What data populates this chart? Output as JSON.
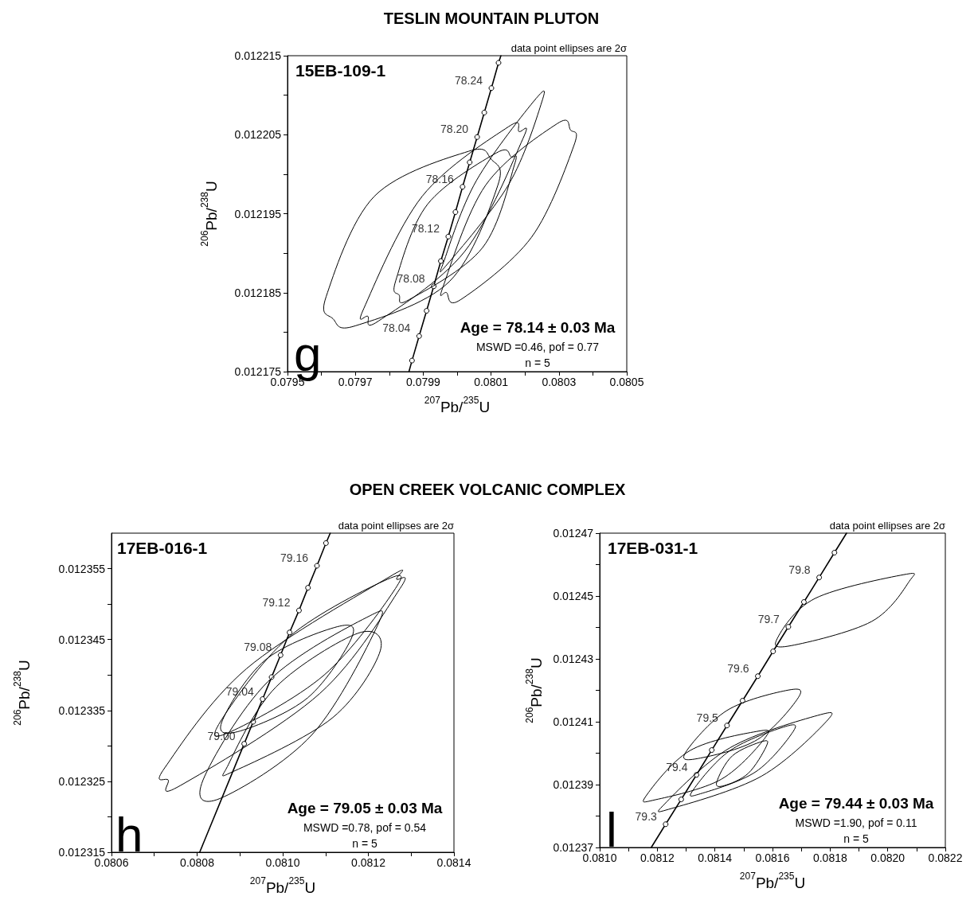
{
  "chart_data": [
    {
      "type": "line",
      "title": "TESLIN MOUNTAIN PLUTON",
      "xlabel": "$^{207}$Pb/$^{235}$U",
      "ylabel": "$^{206}$Pb/$^{238}$U",
      "xlim": [
        0.0795,
        0.0805
      ],
      "xticks": [
        0.0795,
        {
          "value": 0.0796,
          "label": null
        },
        0.0797,
        {
          "value": 0.0798,
          "label": null
        },
        0.0799,
        {
          "value": 0.08,
          "label": null
        },
        0.0801,
        {
          "value": 0.0802,
          "label": null
        },
        0.0803,
        {
          "value": 0.0804,
          "label": null
        },
        0.0805
      ],
      "ylim": [
        0.012175,
        0.012215
      ],
      "yticks": [
        0.012175,
        {
          "value": 0.01218,
          "label": null
        },
        0.012185,
        {
          "value": 0.01219,
          "label": null
        },
        0.012195,
        {
          "value": 0.0122,
          "label": null
        },
        0.012205,
        {
          "value": 0.01221,
          "label": null
        },
        0.012215
      ],
      "series": [
        {
          "type": "line",
          "marker": "none",
          "color": "#000000",
          "x": [
            0.079858,
            0.079867,
            0.079888,
            0.07991,
            0.079931,
            0.079952,
            0.079974,
            0.079995,
            0.080016,
            0.080037,
            0.080059,
            0.08008,
            0.080101,
            0.080122,
            0.080129
          ],
          "values": [
            0.012175,
            0.0121764,
            0.0121795,
            0.0121827,
            0.0121858,
            0.012189,
            0.0121921,
            0.0121952,
            0.0121984,
            0.0122015,
            0.0122047,
            0.0122078,
            0.0122109,
            0.0122141,
            0.012215
          ]
        },
        {
          "type": "scatter",
          "marker": "circle",
          "color": "#000000",
          "x": [
            0.079867,
            0.079888,
            0.07991,
            0.079931,
            0.079952,
            0.079974,
            0.079995,
            0.080016,
            0.080037,
            0.080059,
            0.08008,
            0.080101,
            0.080122
          ],
          "values": [
            0.0121764,
            0.0121795,
            0.0121827,
            0.0121858,
            0.012189,
            0.0121921,
            0.0121952,
            0.0121984,
            0.0122015,
            0.0122047,
            0.0122078,
            0.0122109,
            0.0122141
          ]
        }
      ],
      "annotations": [
        "15EB-109-1",
        "data point ellipses are 2σ",
        "Age = 78.14 ± 0.03 Ma",
        "MSWD =0.46, pof = 0.77",
        "n = 5",
        "g",
        {
          "text": "78.04",
          "x": 0.079888,
          "y": 0.0121795
        },
        {
          "text": "78.08",
          "x": 0.079931,
          "y": 0.0121858
        },
        {
          "text": "78.12",
          "x": 0.079974,
          "y": 0.0121921
        },
        {
          "text": "78.16",
          "x": 0.080016,
          "y": 0.0121984
        },
        {
          "text": "78.20",
          "x": 0.080059,
          "y": 0.0122047
        },
        {
          "text": "78.24",
          "x": 0.080101,
          "y": 0.0122109
        }
      ]
    },
    {
      "type": "line",
      "title": "OPEN CREEK VOLCANIC COMPLEX",
      "xlabel": "$^{207}$Pb/$^{235}$U",
      "ylabel": "$^{206}$Pb/$^{238}$U",
      "xlim": [
        0.0806,
        0.0814
      ],
      "xticks": [
        0.0806,
        {
          "value": 0.0807,
          "label": null
        },
        0.0808,
        {
          "value": 0.0809,
          "label": null
        },
        {
          "value": 0.081,
          "label": "0.0810"
        },
        {
          "value": 0.0811,
          "label": null
        },
        0.0812,
        {
          "value": 0.0813,
          "label": null
        },
        0.0814
      ],
      "ylim": [
        0.012315,
        0.01236
      ],
      "yticks": [
        0.012315,
        {
          "value": 0.01232,
          "label": null
        },
        0.012325,
        {
          "value": 0.01233,
          "label": null
        },
        0.012335,
        {
          "value": 0.01234,
          "label": null
        },
        0.012345,
        {
          "value": 0.01235,
          "label": null
        },
        0.012355
      ],
      "series": [
        {
          "type": "line",
          "marker": "none",
          "color": "#000000",
          "x": [
            0.080806,
            0.08091,
            0.080931,
            0.080953,
            0.080974,
            0.080995,
            0.081016,
            0.081038,
            0.081059,
            0.08108,
            0.081101,
            0.081111
          ],
          "values": [
            0.012315,
            0.0123303,
            0.0123334,
            0.0123366,
            0.0123397,
            0.0123428,
            0.012346,
            0.0123491,
            0.0123523,
            0.0123554,
            0.0123586,
            0.01236
          ]
        },
        {
          "type": "scatter",
          "marker": "circle",
          "color": "#000000",
          "x": [
            0.08091,
            0.080931,
            0.080953,
            0.080974,
            0.080995,
            0.081016,
            0.081038,
            0.081059,
            0.08108,
            0.081101
          ],
          "values": [
            0.0123303,
            0.0123334,
            0.0123366,
            0.0123397,
            0.0123428,
            0.012346,
            0.0123491,
            0.0123523,
            0.0123554,
            0.0123586
          ]
        }
      ],
      "annotations": [
        "17EB-016-1",
        "data point ellipses are 2σ",
        "Age = 79.05 ± 0.03 Ma",
        "MSWD =0.78, pof = 0.54",
        "n = 5",
        "h",
        {
          "text": "79.00",
          "x": 0.08091,
          "y": 0.0123303
        },
        {
          "text": "79.04",
          "x": 0.080953,
          "y": 0.0123366
        },
        {
          "text": "79.08",
          "x": 0.080995,
          "y": 0.0123428
        },
        {
          "text": "79.12",
          "x": 0.081038,
          "y": 0.0123491
        },
        {
          "text": "79.16",
          "x": 0.08108,
          "y": 0.0123554
        }
      ]
    },
    {
      "type": "line",
      "xlabel": "$^{207}$Pb/$^{235}$U",
      "ylabel": "$^{206}$Pb/$^{238}$U",
      "xlim": [
        0.081,
        0.0822
      ],
      "xticks": [
        {
          "value": 0.081,
          "label": "0.0810"
        },
        {
          "value": 0.0811,
          "label": null
        },
        0.0812,
        {
          "value": 0.0813,
          "label": null
        },
        0.0814,
        {
          "value": 0.0815,
          "label": null
        },
        0.0816,
        {
          "value": 0.0817,
          "label": null
        },
        0.0818,
        {
          "value": 0.0819,
          "label": null
        },
        {
          "value": 0.082,
          "label": "0.0820"
        },
        {
          "value": 0.0821,
          "label": null
        },
        0.0822
      ],
      "ylim": [
        0.01237,
        0.01247
      ],
      "yticks": [
        0.01237,
        {
          "value": 0.01238,
          "label": null
        },
        0.01239,
        {
          "value": 0.0124,
          "label": null
        },
        0.01241,
        {
          "value": 0.01242,
          "label": null
        },
        0.01243,
        {
          "value": 0.01244,
          "label": null
        },
        0.01245,
        {
          "value": 0.01246,
          "label": null
        },
        0.01247
      ],
      "series": [
        {
          "type": "line",
          "marker": "none",
          "color": "#000000",
          "x": [
            0.081179,
            0.081229,
            0.081283,
            0.081336,
            0.081389,
            0.081442,
            0.081496,
            0.081549,
            0.081602,
            0.081655,
            0.081709,
            0.081762,
            0.081815,
            0.081857
          ],
          "values": [
            0.01237,
            0.0123774,
            0.0123853,
            0.0123931,
            0.012401,
            0.0124088,
            0.0124167,
            0.0124245,
            0.0124324,
            0.0124402,
            0.0124481,
            0.0124559,
            0.0124638,
            0.01247
          ]
        },
        {
          "type": "scatter",
          "marker": "circle",
          "color": "#000000",
          "x": [
            0.081229,
            0.081283,
            0.081336,
            0.081389,
            0.081442,
            0.081496,
            0.081549,
            0.081602,
            0.081655,
            0.081709,
            0.081762,
            0.081815
          ],
          "values": [
            0.0123774,
            0.0123853,
            0.0123931,
            0.012401,
            0.0124088,
            0.0124167,
            0.0124245,
            0.0124324,
            0.0124402,
            0.0124481,
            0.0124559,
            0.0124638
          ]
        }
      ],
      "annotations": [
        "17EB-031-1",
        "data point ellipses are 2σ",
        "Age = 79.44 ± 0.03 Ma",
        "MSWD =1.90, pof = 0.11",
        "n = 5",
        "l",
        {
          "text": "79.3",
          "x": 0.081229,
          "y": 0.0123774
        },
        {
          "text": "79.4",
          "x": 0.081336,
          "y": 0.0123931
        },
        {
          "text": "79.5",
          "x": 0.081442,
          "y": 0.0124088
        },
        {
          "text": "79.6",
          "x": 0.081549,
          "y": 0.0124245
        },
        {
          "text": "79.7",
          "x": 0.081655,
          "y": 0.0124402
        },
        {
          "text": "79.8",
          "x": 0.081762,
          "y": 0.0124559
        }
      ]
    }
  ]
}
